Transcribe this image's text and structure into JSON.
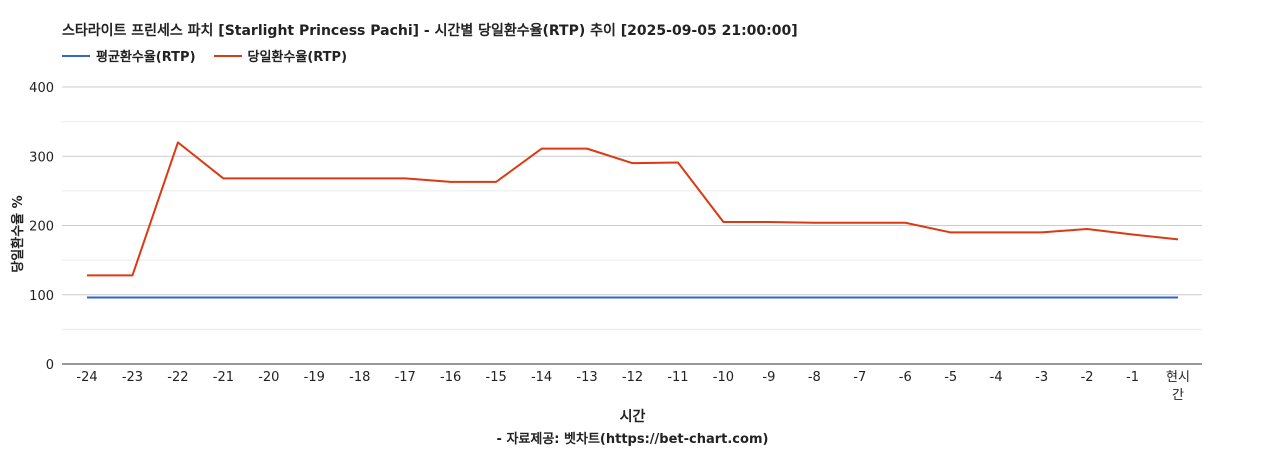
{
  "chart_data": {
    "type": "line",
    "title": "스타라이트 프린세스 파치 [Starlight Princess Pachi] - 시간별 당일환수율(RTP) 추이 [2025-09-05 21:00:00]",
    "xlabel": "시간",
    "ylabel": "당일환수율 %",
    "source": "- 자료제공: 벳차트(https://bet-chart.com)",
    "ylim": [
      0,
      400
    ],
    "yticks": [
      "0",
      "100",
      "200",
      "300",
      "400"
    ],
    "grid": true,
    "legend_position": "top-left",
    "categories": [
      "-24",
      "-23",
      "-22",
      "-21",
      "-20",
      "-19",
      "-18",
      "-17",
      "-16",
      "-15",
      "-14",
      "-13",
      "-12",
      "-11",
      "-10",
      "-9",
      "-8",
      "-7",
      "-6",
      "-5",
      "-4",
      "-3",
      "-2",
      "-1",
      "현시간"
    ],
    "series": [
      {
        "name": "평균환수율(RTP)",
        "color": "#3366cc",
        "values": [
          96,
          96,
          96,
          96,
          96,
          96,
          96,
          96,
          96,
          96,
          96,
          96,
          96,
          96,
          96,
          96,
          96,
          96,
          96,
          96,
          96,
          96,
          96,
          96,
          96
        ]
      },
      {
        "name": "당일환수율(RTP)",
        "color": "#dc3912",
        "values": [
          128,
          128,
          320,
          268,
          268,
          268,
          268,
          268,
          263,
          263,
          311,
          311,
          290,
          291,
          205,
          205,
          204,
          204,
          204,
          190,
          190,
          190,
          195,
          187,
          180
        ]
      }
    ]
  }
}
